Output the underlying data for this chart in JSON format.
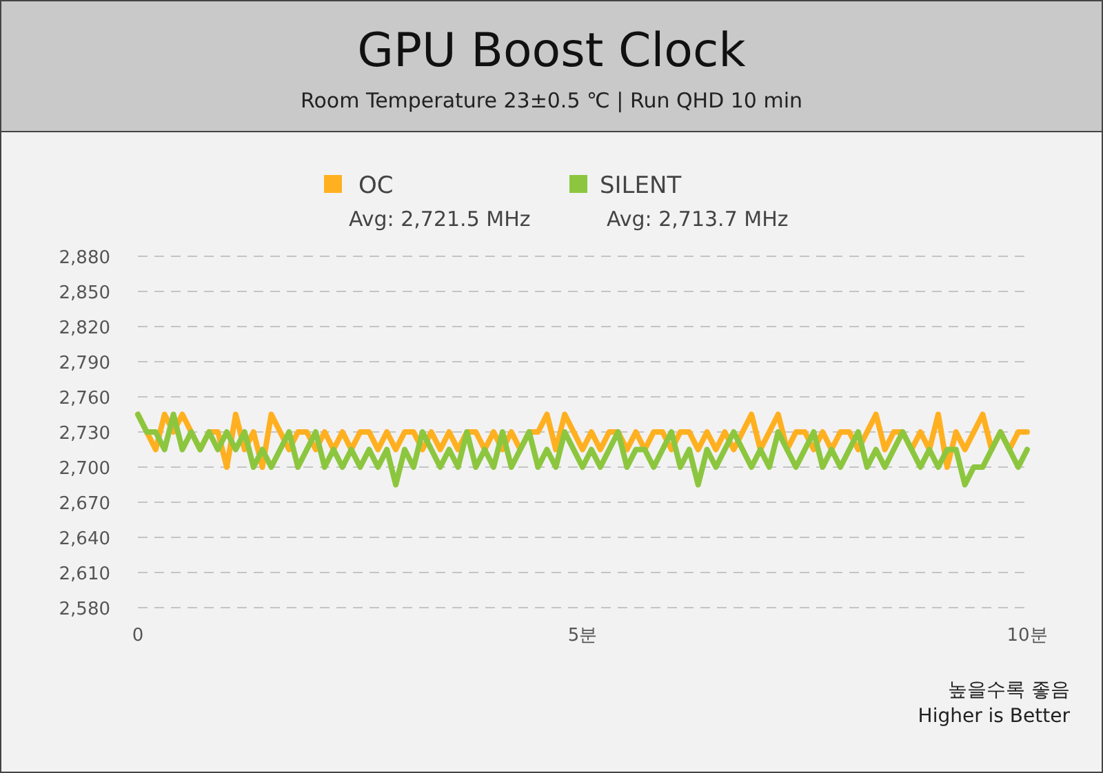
{
  "chart_data": {
    "type": "line",
    "title": "GPU Boost Clock",
    "subtitle": "Room Temperature 23±0.5 ℃  |  Run QHD 10 min",
    "x": [
      0,
      0.1,
      0.2,
      0.3,
      0.4,
      0.5,
      0.6,
      0.7,
      0.8,
      0.9,
      1,
      1.1,
      1.2,
      1.3,
      1.4,
      1.5,
      1.6,
      1.7,
      1.8,
      1.9,
      2,
      2.1,
      2.2,
      2.3,
      2.4,
      2.5,
      2.6,
      2.7,
      2.8,
      2.9,
      3,
      3.1,
      3.2,
      3.3,
      3.4,
      3.5,
      3.6,
      3.7,
      3.8,
      3.9,
      4,
      4.1,
      4.2,
      4.3,
      4.4,
      4.5,
      4.6,
      4.7,
      4.8,
      4.9,
      5,
      5.1,
      5.2,
      5.3,
      5.4,
      5.5,
      5.6,
      5.7,
      5.8,
      5.9,
      6,
      6.1,
      6.2,
      6.3,
      6.4,
      6.5,
      6.6,
      6.7,
      6.8,
      6.9,
      7,
      7.1,
      7.2,
      7.3,
      7.4,
      7.5,
      7.6,
      7.7,
      7.8,
      7.9,
      8,
      8.1,
      8.2,
      8.3,
      8.4,
      8.5,
      8.6,
      8.7,
      8.8,
      8.9,
      9,
      9.1,
      9.2,
      9.3,
      9.4,
      9.5,
      9.6,
      9.7,
      9.8,
      9.9,
      10
    ],
    "series": [
      {
        "name": "OC",
        "color": "#ffb020",
        "values": [
          2745,
          2730,
          2715,
          2745,
          2730,
          2745,
          2730,
          2715,
          2730,
          2730,
          2700,
          2745,
          2715,
          2730,
          2700,
          2745,
          2730,
          2715,
          2730,
          2730,
          2715,
          2730,
          2715,
          2730,
          2715,
          2730,
          2730,
          2715,
          2730,
          2715,
          2730,
          2730,
          2715,
          2730,
          2715,
          2730,
          2715,
          2730,
          2730,
          2715,
          2730,
          2715,
          2730,
          2715,
          2730,
          2730,
          2745,
          2715,
          2745,
          2730,
          2715,
          2730,
          2715,
          2730,
          2730,
          2715,
          2730,
          2715,
          2730,
          2730,
          2715,
          2730,
          2730,
          2715,
          2730,
          2715,
          2730,
          2715,
          2730,
          2745,
          2715,
          2730,
          2745,
          2715,
          2730,
          2730,
          2715,
          2730,
          2715,
          2730,
          2730,
          2715,
          2730,
          2745,
          2715,
          2730,
          2730,
          2715,
          2730,
          2715,
          2745,
          2700,
          2730,
          2715,
          2730,
          2745,
          2715,
          2730,
          2715,
          2730,
          2730
        ]
      },
      {
        "name": "SILENT",
        "color": "#8cc63f",
        "values": [
          2745,
          2730,
          2730,
          2715,
          2745,
          2715,
          2730,
          2715,
          2730,
          2715,
          2730,
          2715,
          2730,
          2700,
          2715,
          2700,
          2715,
          2730,
          2700,
          2715,
          2730,
          2700,
          2715,
          2700,
          2715,
          2700,
          2715,
          2700,
          2715,
          2685,
          2715,
          2700,
          2730,
          2715,
          2700,
          2715,
          2700,
          2730,
          2700,
          2715,
          2700,
          2730,
          2700,
          2715,
          2730,
          2700,
          2715,
          2700,
          2730,
          2715,
          2700,
          2715,
          2700,
          2715,
          2730,
          2700,
          2715,
          2715,
          2700,
          2715,
          2730,
          2700,
          2715,
          2685,
          2715,
          2700,
          2715,
          2730,
          2715,
          2700,
          2715,
          2700,
          2730,
          2715,
          2700,
          2715,
          2730,
          2700,
          2715,
          2700,
          2715,
          2730,
          2700,
          2715,
          2700,
          2715,
          2730,
          2715,
          2700,
          2715,
          2700,
          2715,
          2715,
          2685,
          2700,
          2700,
          2715,
          2730,
          2715,
          2700,
          2715
        ]
      }
    ],
    "xlim": [
      0,
      10
    ],
    "xticks": [
      0,
      {
        "value": 5,
        "label": "5분"
      },
      {
        "value": 10,
        "label": "10분"
      }
    ],
    "ylim": [
      2580,
      2880
    ],
    "yticks": [
      {
        "value": 2580,
        "label": "2,580"
      },
      {
        "value": 2610,
        "label": "2,610"
      },
      {
        "value": 2640,
        "label": "2,640"
      },
      {
        "value": 2670,
        "label": "2,670"
      },
      {
        "value": 2700,
        "label": "2,700"
      },
      {
        "value": 2730,
        "label": "2,730"
      },
      {
        "value": 2760,
        "label": "2,760"
      },
      {
        "value": 2790,
        "label": "2,790"
      },
      {
        "value": 2820,
        "label": "2,820"
      },
      {
        "value": 2850,
        "label": "2,850"
      },
      {
        "value": 2880,
        "label": "2,880"
      }
    ],
    "grid": "y",
    "legend": "top",
    "marker": "none",
    "line_style": "solid",
    "annotations": [
      "Avg: 2,721.5 MHz",
      "Avg: 2,713.7 MHz",
      "높을수록 좋음",
      "Higher is Better"
    ]
  }
}
